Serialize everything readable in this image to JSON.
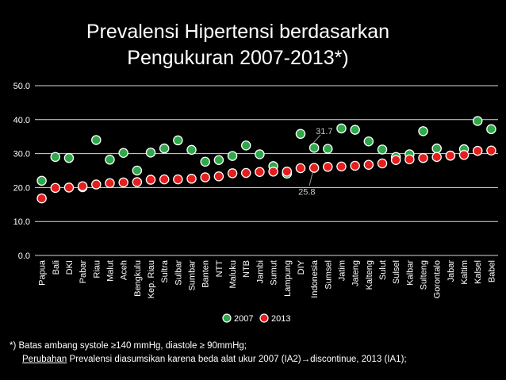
{
  "chart_data": {
    "type": "scatter",
    "title_line1": "Prevalensi Hipertensi berdasarkan",
    "title_line2": "Pengukuran 2007-2013*)",
    "categories": [
      "Papua",
      "Bali",
      "DKI",
      "Pabar",
      "Riau",
      "Malut",
      "Aceh",
      "Bengkulu",
      "Kep. Riau",
      "Sultra",
      "Sulbar",
      "Sumbar",
      "Banten",
      "NTT",
      "Maluku",
      "NTB",
      "Jambi",
      "Sumut",
      "Lampung",
      "DIY",
      "Indonesia",
      "Sumsel",
      "Jatim",
      "Jateng",
      "Kalteng",
      "Sulut",
      "Sulsel",
      "Kalbar",
      "Sulteng",
      "Gorontalo",
      "Jabar",
      "Kaltim",
      "Kalsel",
      "Babel"
    ],
    "series": [
      {
        "name": "2007",
        "color": "#2ea84a",
        "values": [
          22.0,
          29.0,
          28.7,
          20.1,
          34.0,
          28.2,
          30.2,
          25.0,
          30.3,
          31.5,
          33.9,
          31.1,
          27.6,
          28.1,
          29.3,
          32.4,
          29.8,
          26.3,
          24.1,
          35.8,
          31.7,
          31.4,
          37.4,
          37.0,
          33.6,
          31.2,
          29.0,
          29.8,
          36.6,
          31.5,
          29.4,
          31.3,
          39.6,
          37.2
        ]
      },
      {
        "name": "2013",
        "color": "#e41d1d",
        "values": [
          16.8,
          19.9,
          20.0,
          20.4,
          20.9,
          21.3,
          21.5,
          21.6,
          22.3,
          22.4,
          22.4,
          22.6,
          23.0,
          23.3,
          24.2,
          24.3,
          24.6,
          24.7,
          24.7,
          25.7,
          25.8,
          26.1,
          26.2,
          26.4,
          26.7,
          27.1,
          28.1,
          28.3,
          28.7,
          29.0,
          29.4,
          29.6,
          30.8,
          30.9
        ]
      }
    ],
    "annotations": [
      {
        "text": "31.7",
        "category": "Indonesia",
        "series": "2007"
      },
      {
        "text": "25.8",
        "category": "Indonesia",
        "series": "2013"
      }
    ],
    "ylim": [
      0,
      50
    ],
    "yticks": [
      "0.0",
      "10.0",
      "20.0",
      "30.0",
      "40.0",
      "50.0"
    ],
    "ytick_values": [
      0,
      10,
      20,
      30,
      40,
      50
    ],
    "legend_position": "bottom",
    "grid": true,
    "colors": {
      "background": "#000000",
      "grid": "#ffffff",
      "text": "#ffffff"
    }
  },
  "footnote": {
    "line1": "*) Batas ambang systole ≥140 mmHg, diastole ≥ 90mmHg;",
    "line2_a": "Perubahan",
    "line2_b": " Prevalensi diasumsikan karena beda alat ukur 2007 (IA2)",
    "arrow": "→",
    "line2_c": "discontinue, 2013 (IA1);"
  }
}
